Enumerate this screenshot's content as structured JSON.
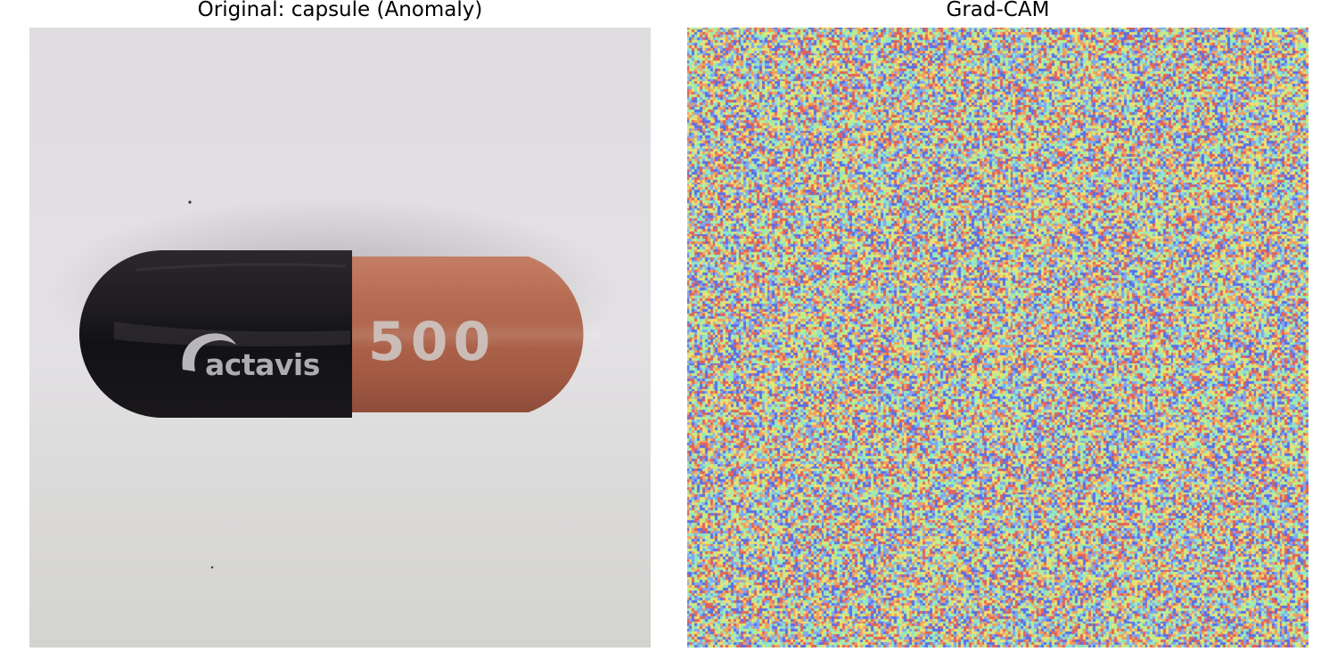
{
  "figure": {
    "left_title": "Original: capsule (Anomaly)",
    "right_title": "Grad-CAM"
  },
  "capsule": {
    "brand_text": "actavis",
    "number_text": "500",
    "cap_color": "#1c1a1d",
    "body_color": "#b56b52",
    "print_color": "#c9c6c4",
    "background_top": "#dfdde0",
    "background_bottom": "#d3d3cf"
  },
  "heatmap": {
    "colormap": "jet",
    "grid_cells": 240,
    "description_palette": [
      "#5b6ee8",
      "#7fa6f2",
      "#8fe6c8",
      "#b9ef8e",
      "#efe070",
      "#f0a060",
      "#e2625a"
    ]
  }
}
